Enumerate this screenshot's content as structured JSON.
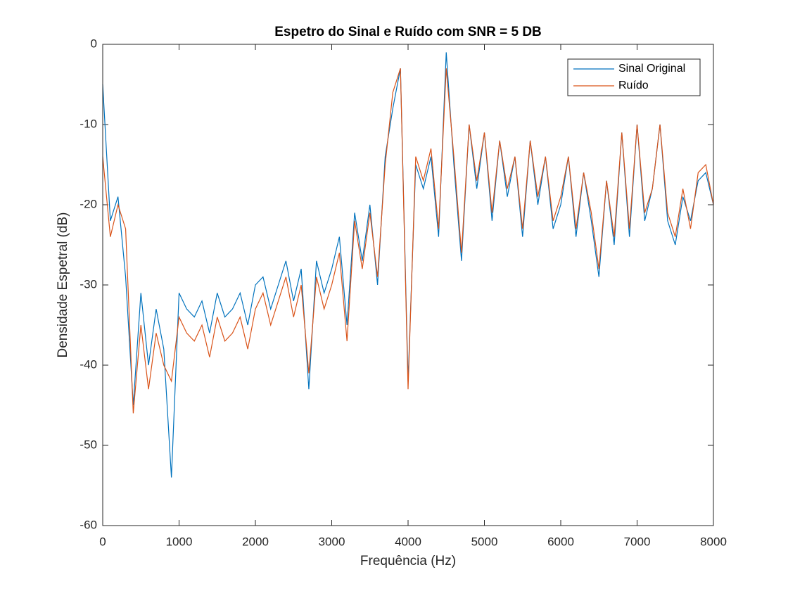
{
  "chart_data": {
    "type": "line",
    "title": "Espetro do Sinal e Ruído com SNR = 5 DB",
    "x_label": "Frequência (Hz)",
    "y_label": "Densidade Espetral (dB)",
    "x": [
      0,
      100,
      200,
      300,
      400,
      500,
      600,
      700,
      800,
      900,
      1000,
      1100,
      1200,
      1300,
      1400,
      1500,
      1600,
      1700,
      1800,
      1900,
      2000,
      2100,
      2200,
      2300,
      2400,
      2500,
      2600,
      2700,
      2800,
      2900,
      3000,
      3100,
      3200,
      3300,
      3400,
      3500,
      3600,
      3700,
      3800,
      3900,
      4000,
      4100,
      4200,
      4300,
      4400,
      4500,
      4600,
      4700,
      4800,
      4900,
      5000,
      5100,
      5200,
      5300,
      5400,
      5500,
      5600,
      5700,
      5800,
      5900,
      6000,
      6100,
      6200,
      6300,
      6400,
      6500,
      6600,
      6700,
      6800,
      6900,
      7000,
      7100,
      7200,
      7300,
      7400,
      7500,
      7600,
      7700,
      7800,
      7900,
      8000
    ],
    "series": [
      {
        "name": "Sinal Original",
        "color": "#0072bd",
        "values": [
          -5,
          -22,
          -19,
          -29,
          -45,
          -31,
          -40,
          -33,
          -38,
          -54,
          -31,
          -33,
          -34,
          -32,
          -36,
          -31,
          -34,
          -33,
          -31,
          -35,
          -30,
          -29,
          -33,
          -30,
          -27,
          -32,
          -28,
          -43,
          -27,
          -31,
          -28,
          -24,
          -35,
          -21,
          -27,
          -20,
          -30,
          -14,
          -8,
          -3,
          -42,
          -15,
          -18,
          -14,
          -24,
          -1,
          -15,
          -27,
          -10,
          -18,
          -11,
          -22,
          -12,
          -19,
          -14,
          -24,
          -12,
          -20,
          -14,
          -23,
          -20,
          -14,
          -24,
          -16,
          -22,
          -29,
          -17,
          -25,
          -11,
          -24,
          -10,
          -22,
          -18,
          -10,
          -22,
          -25,
          -19,
          -22,
          -17,
          -16,
          -20
        ]
      },
      {
        "name": "Ruído",
        "color": "#d95319",
        "values": [
          -14,
          -24,
          -20,
          -23,
          -46,
          -35,
          -43,
          -36,
          -40,
          -42,
          -34,
          -36,
          -37,
          -35,
          -39,
          -34,
          -37,
          -36,
          -34,
          -38,
          -33,
          -31,
          -35,
          -32,
          -29,
          -34,
          -30,
          -41,
          -29,
          -33,
          -30,
          -26,
          -37,
          -22,
          -28,
          -21,
          -29,
          -15,
          -6,
          -3,
          -43,
          -14,
          -17,
          -13,
          -23,
          -3,
          -14,
          -26,
          -10,
          -17,
          -11,
          -21,
          -12,
          -18,
          -14,
          -23,
          -12,
          -19,
          -14,
          -22,
          -19,
          -14,
          -23,
          -16,
          -21,
          -28,
          -17,
          -24,
          -11,
          -23,
          -10,
          -21,
          -18,
          -10,
          -21,
          -24,
          -18,
          -23,
          -16,
          -15,
          -20
        ]
      }
    ],
    "xlim": [
      0,
      8000
    ],
    "xticks": [
      0,
      1000,
      2000,
      3000,
      4000,
      5000,
      6000,
      7000,
      8000
    ],
    "ylim": [
      -60,
      0
    ],
    "yticks": [
      -60,
      -50,
      -40,
      -30,
      -20,
      -10,
      0
    ],
    "grid": false,
    "legend": "northeast"
  }
}
